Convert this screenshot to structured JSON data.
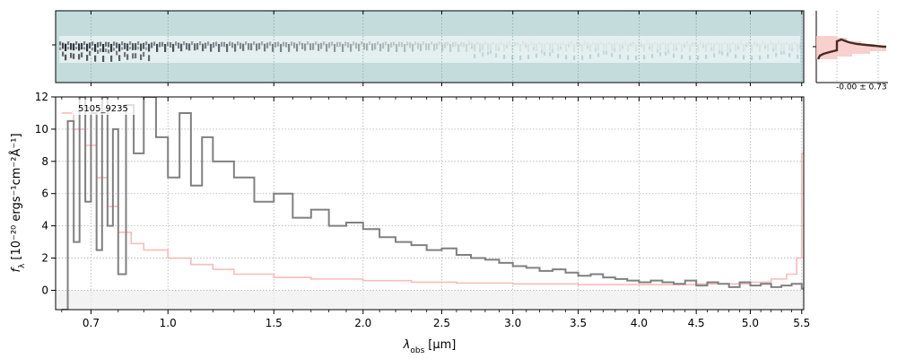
{
  "chart_data": [
    {
      "type": "heatmap",
      "panel": "2d-spectrum",
      "background_color": "#c4dcdc",
      "trace_color": "#1b1b24",
      "x_ticks": [
        0.7,
        1.0,
        1.5,
        2.0,
        2.5,
        3.0,
        3.5,
        4.0,
        4.5,
        5.0,
        5.5
      ],
      "x_tick_labels": []
    },
    {
      "type": "line",
      "panel": "1d-spectrum",
      "title": "",
      "label": "5105_9235",
      "xlabel": "λ",
      "xlabel_sub": "obs",
      "xlabel_unit": "[μm]",
      "ylabel_prefix": "f",
      "ylabel_sub": "λ",
      "ylabel_text": "[10⁻²⁰ ergs⁻¹cm⁻²Å⁻¹]",
      "x_scale": "sqrt",
      "xlim": [
        0.58,
        5.52
      ],
      "ylim": [
        -1.2,
        12
      ],
      "x_ticks": [
        0.7,
        1.0,
        1.5,
        2.0,
        2.5,
        3.0,
        3.5,
        4.0,
        4.5,
        5.0,
        5.5
      ],
      "x_tick_labels": [
        "0.7",
        "1.0",
        "1.5",
        "2.0",
        "2.5",
        "3.0",
        "3.5",
        "4.0",
        "4.5",
        "5.0",
        "5.5"
      ],
      "y_ticks": [
        0,
        2,
        4,
        6,
        8,
        10,
        12
      ],
      "y_tick_labels": [
        "0",
        "2",
        "4",
        "6",
        "8",
        "10",
        "12"
      ],
      "grid": true,
      "series": [
        {
          "style": "steps",
          "color": "#808080",
          "x": [
            0.6,
            0.62,
            0.64,
            0.66,
            0.68,
            0.7,
            0.72,
            0.74,
            0.76,
            0.78,
            0.8,
            0.83,
            0.86,
            0.9,
            0.95,
            1.0,
            1.05,
            1.1,
            1.15,
            1.2,
            1.3,
            1.4,
            1.5,
            1.6,
            1.7,
            1.8,
            1.9,
            2.0,
            2.1,
            2.2,
            2.3,
            2.4,
            2.5,
            2.6,
            2.7,
            2.8,
            2.9,
            3.0,
            3.1,
            3.2,
            3.3,
            3.4,
            3.5,
            3.6,
            3.7,
            3.8,
            3.9,
            4.0,
            4.1,
            4.2,
            4.3,
            4.4,
            4.5,
            4.6,
            4.7,
            4.8,
            4.9,
            5.0,
            5.1,
            5.2,
            5.3,
            5.4,
            5.5
          ],
          "y": [
            -1.2,
            10.5,
            3.0,
            12.0,
            5.5,
            11.0,
            2.5,
            12.0,
            4.0,
            10.0,
            1.0,
            11.5,
            8.5,
            12.0,
            9.5,
            7.0,
            11.0,
            6.5,
            9.5,
            8.0,
            7.0,
            5.5,
            6.0,
            4.5,
            5.0,
            4.0,
            4.2,
            3.8,
            3.3,
            3.0,
            2.8,
            2.5,
            2.6,
            2.2,
            2.0,
            1.9,
            1.7,
            1.5,
            1.4,
            1.2,
            1.3,
            1.1,
            0.9,
            1.0,
            0.8,
            0.7,
            0.6,
            0.5,
            0.6,
            0.5,
            0.4,
            0.6,
            0.3,
            0.5,
            0.4,
            0.2,
            0.5,
            0.3,
            0.4,
            0.2,
            0.3,
            0.4,
            0.1
          ]
        },
        {
          "style": "steps",
          "name": "",
          "color": "#f7b5b0",
          "x": [
            0.6,
            0.64,
            0.68,
            0.72,
            0.76,
            0.8,
            0.85,
            0.9,
            1.0,
            1.1,
            1.2,
            1.3,
            1.5,
            1.7,
            2.0,
            2.3,
            2.6,
            3.0,
            3.5,
            4.0,
            4.5,
            5.0,
            5.2,
            5.35,
            5.45,
            5.5
          ],
          "y": [
            11.0,
            10.0,
            9.0,
            7.0,
            5.2,
            3.6,
            2.9,
            2.5,
            2.0,
            1.6,
            1.3,
            1.0,
            0.8,
            0.7,
            0.6,
            0.5,
            0.45,
            0.4,
            0.35,
            0.35,
            0.4,
            0.5,
            0.7,
            1.0,
            2.0,
            8.5
          ]
        }
      ]
    },
    {
      "type": "line",
      "panel": "profile",
      "annotation": "-0.00 ± 0.73",
      "fill_color": "#f7c8c4",
      "line_color": "#4a2a22"
    }
  ]
}
